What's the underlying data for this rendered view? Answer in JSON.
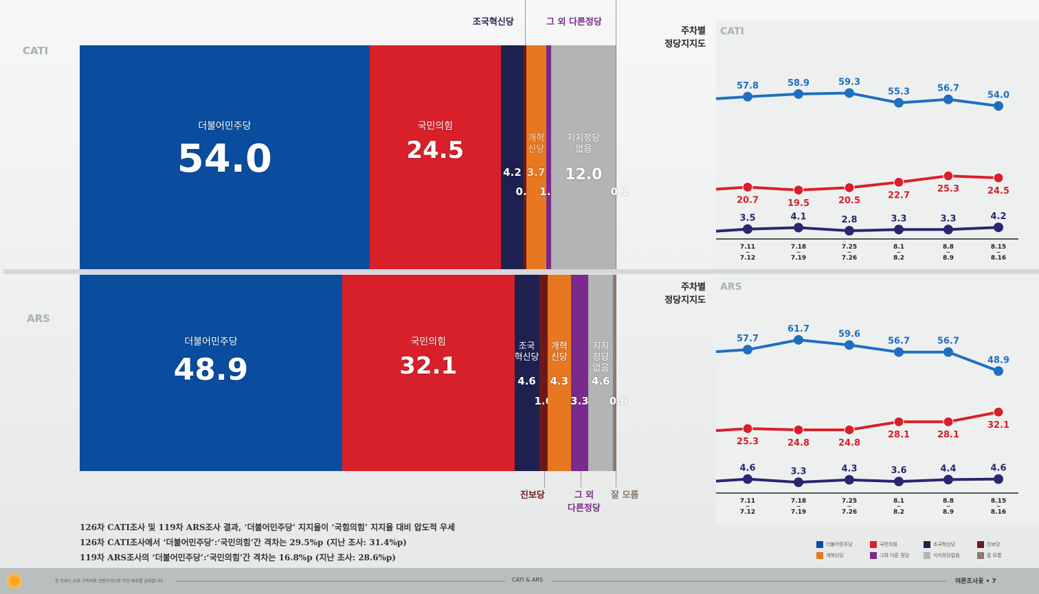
{
  "colors": {
    "minjoo": "#0a4d9e",
    "ppp": "#d8202a",
    "rebuild": "#1e2150",
    "progressive": "#6b1a1a",
    "reform": "#e87722",
    "others": "#7a2a8a",
    "none": "#b2b4b6",
    "unknown": "#8a7a70",
    "line_minjoo": "#1f6fc0",
    "line_ppp": "#d8202a",
    "line_rebuild": "#2a2670"
  },
  "legend": [
    "더불어민주당",
    "국민의힘",
    "조국혁신당",
    "진보당",
    "개혁신당",
    "그외 다른 정당",
    "지지정당없음",
    "잘 모름"
  ],
  "top_labels": {
    "rebuild": "조국혁신당",
    "others": "그 외 다른정당"
  },
  "bottom_labels": {
    "progressive": "진보당",
    "others": "그 외\n다른정당",
    "unknown": "잘 모름"
  },
  "chart_data": [
    {
      "type": "bar",
      "stacked": true,
      "title": "CATI",
      "categories": [
        "더불어민주당",
        "국민의힘",
        "조국혁신당",
        "진보당",
        "개혁신당",
        "그외 다른정당",
        "지지정당 없음",
        "잘 모름"
      ],
      "values": [
        54.0,
        24.5,
        4.2,
        0.5,
        3.7,
        1.0,
        12.0,
        0.1
      ]
    },
    {
      "type": "bar",
      "stacked": true,
      "title": "ARS",
      "categories": [
        "더불어민주당",
        "국민의힘",
        "조국혁신당",
        "진보당",
        "개혁신당",
        "그외 다른정당",
        "지지정당 없음",
        "잘 모름"
      ],
      "values": [
        48.9,
        32.1,
        4.6,
        1.6,
        4.3,
        3.3,
        4.6,
        0.6
      ]
    },
    {
      "type": "line",
      "title": "주차별\n정당지지도",
      "subtitle": "CATI",
      "x": [
        "7.11\n~\n7.12",
        "7.18\n~\n7.19",
        "7.25\n~\n7.26",
        "8.1\n~\n8.2",
        "8.8\n~\n8.9",
        "8.15\n~\n8.16"
      ],
      "series": [
        {
          "party": "더불어민주당",
          "values": [
            57.8,
            58.9,
            59.3,
            55.3,
            56.7,
            54.0
          ]
        },
        {
          "party": "국민의힘",
          "values": [
            20.7,
            19.5,
            20.5,
            22.7,
            25.3,
            24.5
          ]
        },
        {
          "party": "조국혁신당",
          "values": [
            3.5,
            4.1,
            2.8,
            3.3,
            3.3,
            4.2
          ]
        }
      ]
    },
    {
      "type": "line",
      "title": "주차별\n정당지지도",
      "subtitle": "ARS",
      "x": [
        "7.11\n~\n7.12",
        "7.18\n~\n7.19",
        "7.25\n~\n7.26",
        "8.1\n~\n8.2",
        "8.8\n~\n8.9",
        "8.15\n~\n8.16"
      ],
      "series": [
        {
          "party": "더불어민주당",
          "values": [
            57.7,
            61.7,
            59.6,
            56.7,
            56.7,
            48.9
          ]
        },
        {
          "party": "국민의힘",
          "values": [
            25.3,
            24.8,
            24.8,
            28.1,
            28.1,
            32.1
          ]
        },
        {
          "party": "조국혁신당",
          "values": [
            4.6,
            3.3,
            4.3,
            3.6,
            4.4,
            4.6
          ]
        }
      ]
    }
  ],
  "notes": [
    "126차 CATI조사 및 119차 ARS조사 결과, ‘더불어민주당’ 지지율이 ‘국힘의힘’ 지지율 대비 압도적 우세",
    "126차 CATI조사에서 ‘더불어민주당’:‘국민의힘’간 격차는 29.5%p (지난 조사: 31.4%p)",
    "119차 ARS조사의 ‘더불어민주당’:‘국민의힘’간 격차는 16.8%p (지난 조사: 28.6%p)"
  ],
  "footer": {
    "disclaimer": "본 자료는 유료 구독자용 컨텐츠이므로 무단 배포를 금지합니다",
    "center": "CATI & ARS",
    "brand": "여론조사꽃 • 7"
  }
}
